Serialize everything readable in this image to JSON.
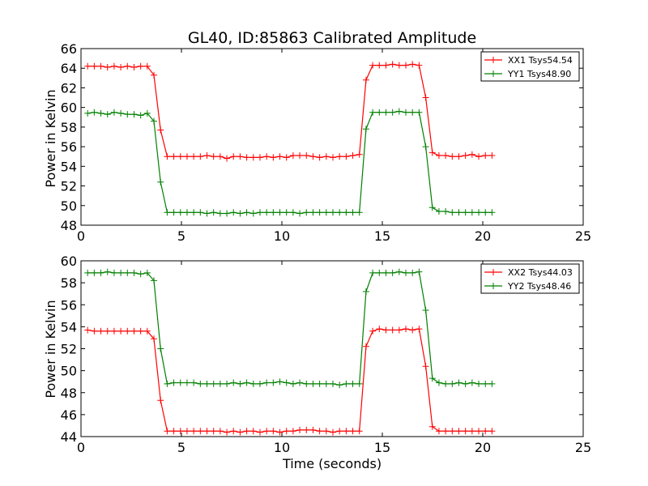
{
  "chart_data": [
    {
      "type": "line",
      "title": "GL40, ID:85863 Calibrated Amplitude",
      "xlabel": "",
      "ylabel": "Power in Kelvin",
      "xlim": [
        0,
        25
      ],
      "ylim": [
        48,
        66
      ],
      "xticks": [
        0,
        5,
        10,
        15,
        20,
        25
      ],
      "yticks": [
        48,
        50,
        52,
        54,
        56,
        58,
        60,
        62,
        64,
        66
      ],
      "legend_position": "top-right",
      "grid": false,
      "series": [
        {
          "name": "XX1 Tsys54.54",
          "color": "#ff0000",
          "x": [
            0.33,
            0.66,
            0.99,
            1.32,
            1.65,
            1.98,
            2.31,
            2.64,
            2.97,
            3.3,
            3.63,
            3.96,
            4.29,
            4.62,
            4.95,
            5.28,
            5.61,
            5.94,
            6.27,
            6.6,
            6.93,
            7.26,
            7.59,
            7.92,
            8.25,
            8.58,
            8.91,
            9.24,
            9.57,
            9.9,
            10.23,
            10.56,
            10.89,
            11.22,
            11.55,
            11.88,
            12.21,
            12.54,
            12.87,
            13.2,
            13.53,
            13.86,
            14.19,
            14.52,
            14.85,
            15.18,
            15.51,
            15.84,
            16.17,
            16.5,
            16.83,
            17.16,
            17.49,
            17.82,
            18.15,
            18.48,
            18.81,
            19.14,
            19.47,
            19.8,
            20.13,
            20.46
          ],
          "y": [
            64.2,
            64.2,
            64.2,
            64.1,
            64.2,
            64.1,
            64.2,
            64.1,
            64.2,
            64.2,
            63.3,
            57.7,
            55.0,
            55.0,
            55.0,
            55.0,
            55.0,
            55.0,
            55.1,
            55.0,
            55.0,
            54.8,
            55.0,
            55.0,
            54.9,
            54.9,
            54.9,
            55.0,
            54.9,
            55.0,
            54.9,
            55.1,
            55.1,
            55.1,
            55.0,
            54.9,
            55.0,
            54.9,
            55.0,
            55.0,
            55.1,
            55.2,
            62.8,
            64.3,
            64.3,
            64.3,
            64.4,
            64.3,
            64.3,
            64.4,
            64.3,
            61.0,
            55.4,
            55.1,
            55.1,
            55.0,
            55.0,
            55.1,
            55.2,
            55.0,
            55.1,
            55.1
          ]
        },
        {
          "name": "YY1 Tsys48.90",
          "color": "#008000",
          "x": [
            0.33,
            0.66,
            0.99,
            1.32,
            1.65,
            1.98,
            2.31,
            2.64,
            2.97,
            3.3,
            3.63,
            3.96,
            4.29,
            4.62,
            4.95,
            5.28,
            5.61,
            5.94,
            6.27,
            6.6,
            6.93,
            7.26,
            7.59,
            7.92,
            8.25,
            8.58,
            8.91,
            9.24,
            9.57,
            9.9,
            10.23,
            10.56,
            10.89,
            11.22,
            11.55,
            11.88,
            12.21,
            12.54,
            12.87,
            13.2,
            13.53,
            13.86,
            14.19,
            14.52,
            14.85,
            15.18,
            15.51,
            15.84,
            16.17,
            16.5,
            16.83,
            17.16,
            17.49,
            17.82,
            18.15,
            18.48,
            18.81,
            19.14,
            19.47,
            19.8,
            20.13,
            20.46
          ],
          "y": [
            59.4,
            59.5,
            59.4,
            59.3,
            59.5,
            59.4,
            59.3,
            59.3,
            59.2,
            59.4,
            58.6,
            52.4,
            49.3,
            49.3,
            49.3,
            49.3,
            49.3,
            49.3,
            49.2,
            49.3,
            49.2,
            49.2,
            49.3,
            49.2,
            49.3,
            49.2,
            49.3,
            49.3,
            49.3,
            49.3,
            49.3,
            49.3,
            49.2,
            49.3,
            49.3,
            49.3,
            49.3,
            49.3,
            49.3,
            49.3,
            49.3,
            49.3,
            57.8,
            59.5,
            59.5,
            59.5,
            59.5,
            59.6,
            59.5,
            59.5,
            59.5,
            56.0,
            49.8,
            49.4,
            49.4,
            49.3,
            49.3,
            49.3,
            49.3,
            49.3,
            49.3,
            49.3
          ]
        }
      ]
    },
    {
      "type": "line",
      "title": "",
      "xlabel": "Time (seconds)",
      "ylabel": "Power in Kelvin",
      "xlim": [
        0,
        25
      ],
      "ylim": [
        44,
        60
      ],
      "xticks": [
        0,
        5,
        10,
        15,
        20,
        25
      ],
      "yticks": [
        44,
        46,
        48,
        50,
        52,
        54,
        56,
        58,
        60
      ],
      "legend_position": "top-right",
      "grid": false,
      "series": [
        {
          "name": "XX2 Tsys44.03",
          "color": "#ff0000",
          "x": [
            0.33,
            0.66,
            0.99,
            1.32,
            1.65,
            1.98,
            2.31,
            2.64,
            2.97,
            3.3,
            3.63,
            3.96,
            4.29,
            4.62,
            4.95,
            5.28,
            5.61,
            5.94,
            6.27,
            6.6,
            6.93,
            7.26,
            7.59,
            7.92,
            8.25,
            8.58,
            8.91,
            9.24,
            9.57,
            9.9,
            10.23,
            10.56,
            10.89,
            11.22,
            11.55,
            11.88,
            12.21,
            12.54,
            12.87,
            13.2,
            13.53,
            13.86,
            14.19,
            14.52,
            14.85,
            15.18,
            15.51,
            15.84,
            16.17,
            16.5,
            16.83,
            17.16,
            17.49,
            17.82,
            18.15,
            18.48,
            18.81,
            19.14,
            19.47,
            19.8,
            20.13,
            20.46
          ],
          "y": [
            53.7,
            53.6,
            53.6,
            53.6,
            53.6,
            53.6,
            53.6,
            53.6,
            53.6,
            53.6,
            52.9,
            47.3,
            44.5,
            44.5,
            44.5,
            44.5,
            44.5,
            44.5,
            44.5,
            44.5,
            44.5,
            44.4,
            44.5,
            44.4,
            44.5,
            44.5,
            44.4,
            44.5,
            44.5,
            44.4,
            44.5,
            44.5,
            44.6,
            44.6,
            44.6,
            44.5,
            44.5,
            44.4,
            44.5,
            44.5,
            44.5,
            44.5,
            52.2,
            53.6,
            53.8,
            53.7,
            53.7,
            53.7,
            53.8,
            53.7,
            53.8,
            50.4,
            44.9,
            44.5,
            44.5,
            44.5,
            44.5,
            44.5,
            44.5,
            44.5,
            44.5,
            44.5
          ]
        },
        {
          "name": "YY2 Tsys48.46",
          "color": "#008000",
          "x": [
            0.33,
            0.66,
            0.99,
            1.32,
            1.65,
            1.98,
            2.31,
            2.64,
            2.97,
            3.3,
            3.63,
            3.96,
            4.29,
            4.62,
            4.95,
            5.28,
            5.61,
            5.94,
            6.27,
            6.6,
            6.93,
            7.26,
            7.59,
            7.92,
            8.25,
            8.58,
            8.91,
            9.24,
            9.57,
            9.9,
            10.23,
            10.56,
            10.89,
            11.22,
            11.55,
            11.88,
            12.21,
            12.54,
            12.87,
            13.2,
            13.53,
            13.86,
            14.19,
            14.52,
            14.85,
            15.18,
            15.51,
            15.84,
            16.17,
            16.5,
            16.83,
            17.16,
            17.49,
            17.82,
            18.15,
            18.48,
            18.81,
            19.14,
            19.47,
            19.8,
            20.13,
            20.46
          ],
          "y": [
            58.9,
            58.9,
            58.9,
            59.0,
            58.9,
            58.9,
            58.9,
            58.9,
            58.8,
            58.9,
            58.2,
            52.0,
            48.8,
            48.9,
            48.9,
            48.9,
            48.9,
            48.8,
            48.8,
            48.8,
            48.8,
            48.8,
            48.9,
            48.8,
            48.9,
            48.8,
            48.8,
            48.9,
            48.9,
            49.0,
            48.9,
            48.8,
            48.9,
            48.8,
            48.8,
            48.8,
            48.8,
            48.8,
            48.7,
            48.8,
            48.8,
            48.8,
            57.2,
            58.9,
            58.9,
            58.9,
            58.9,
            59.0,
            58.9,
            58.9,
            59.0,
            55.5,
            49.3,
            48.9,
            48.8,
            48.8,
            48.9,
            48.8,
            48.9,
            48.8,
            48.8,
            48.8
          ]
        }
      ]
    }
  ]
}
